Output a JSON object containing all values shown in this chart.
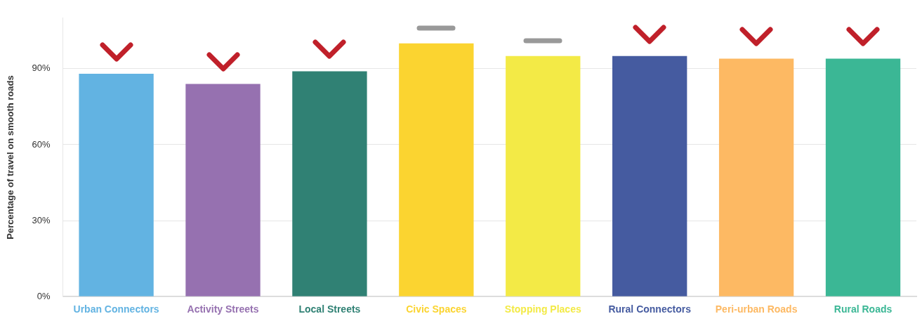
{
  "chart_data": {
    "type": "bar",
    "ylabel": "Percentage of travel on smooth roads",
    "categories": [
      "Urban Connectors",
      "Activity Streets",
      "Local Streets",
      "Civic Spaces",
      "Stopping Places",
      "Rural Connectors",
      "Peri-urban Roads",
      "Rural Roads"
    ],
    "values": [
      88,
      84,
      89,
      100,
      95,
      95,
      94,
      94
    ],
    "colors": [
      "#62b3e2",
      "#9671b0",
      "#308174",
      "#fbd430",
      "#f3ea46",
      "#455ba0",
      "#fdb963",
      "#3bb795"
    ],
    "ylim": [
      0,
      110
    ],
    "yticks": [
      {
        "value": 0,
        "label": "0%"
      },
      {
        "value": 30,
        "label": "30%"
      },
      {
        "value": 60,
        "label": "60%"
      },
      {
        "value": 90,
        "label": "90%"
      }
    ],
    "grid": "y",
    "legend": false
  }
}
